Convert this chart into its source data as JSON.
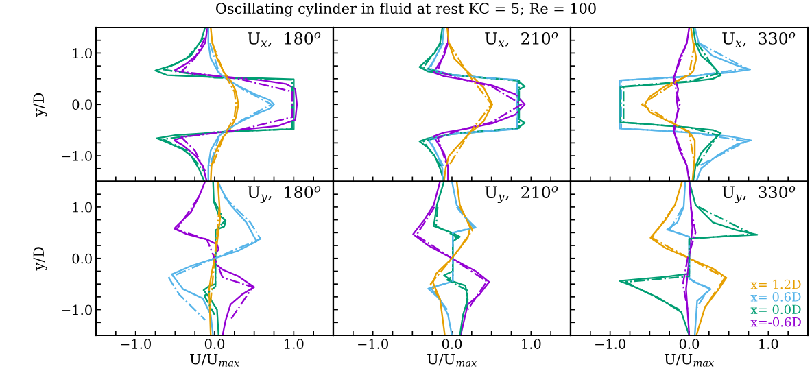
{
  "chart_data": [
    {
      "type": "line",
      "title": "Oscillating cylinder in fluid at rest KC = 5; Re = 100",
      "ylabel": "y/D",
      "annotations": [
        "U$_{x}$,  180$^{o}$"
      ],
      "tick_labels": "y",
      "xlim": [
        -1.5,
        1.5
      ],
      "ylim": [
        -1.5,
        1.5
      ],
      "xticks": [
        -1.25,
        -1,
        -0.75,
        -0.5,
        -0.25,
        0,
        0.25,
        0.5,
        0.75,
        1,
        1.25
      ],
      "yticks": [
        {
          "value": -1.25,
          "label": null
        },
        {
          "value": -1,
          "label": "−1.0"
        },
        {
          "value": -0.75,
          "label": null
        },
        {
          "value": -0.5,
          "label": null
        },
        {
          "value": -0.25,
          "label": null
        },
        {
          "value": 0,
          "label": "0.0"
        },
        {
          "value": 0.25,
          "label": null
        },
        {
          "value": 0.5,
          "label": null
        },
        {
          "value": 0.75,
          "label": null
        },
        {
          "value": 1,
          "label": "1.0"
        },
        {
          "value": 1.25,
          "label": null
        }
      ],
      "series": [
        {
          "color": "#009e73",
          "x": [
            -0.12,
            -0.17,
            -0.3,
            -0.5,
            -0.75,
            -0.6,
            0.0,
            0.6,
            1.0,
            1.0,
            1.0,
            0.5,
            0.0,
            -0.5,
            -0.73,
            -0.6,
            -0.4,
            -0.3,
            -0.2,
            -0.13
          ],
          "values": [
            1.5,
            1.25,
            0.95,
            0.78,
            0.66,
            0.57,
            0.53,
            0.51,
            0.49,
            0.0,
            -0.48,
            -0.51,
            -0.55,
            -0.6,
            -0.66,
            -0.74,
            -0.88,
            -1.0,
            -1.25,
            -1.5
          ]
        },
        {
          "color": "#9400d3",
          "x": [
            -0.09,
            -0.12,
            -0.2,
            -0.35,
            -0.51,
            -0.3,
            0.2,
            0.6,
            0.9,
            1.02,
            1.04,
            1.02,
            0.8,
            0.3,
            -0.1,
            -0.4,
            -0.51,
            -0.4,
            -0.24,
            -0.15,
            -0.1
          ],
          "values": [
            1.5,
            1.2,
            1.0,
            0.8,
            0.66,
            0.6,
            0.53,
            0.47,
            0.4,
            0.3,
            0.0,
            -0.3,
            -0.42,
            -0.5,
            -0.57,
            -0.63,
            -0.7,
            -0.8,
            -1.0,
            -1.2,
            -1.5
          ]
        },
        {
          "color": "#56b4e9",
          "x": [
            -0.08,
            -0.08,
            -0.05,
            0.05,
            0.17,
            0.35,
            0.51,
            0.7,
            0.75,
            0.7,
            0.51,
            0.35,
            0.2,
            0.05,
            -0.05,
            -0.08,
            -0.08
          ],
          "values": [
            1.5,
            1.2,
            0.9,
            0.62,
            0.47,
            0.32,
            0.2,
            0.08,
            0.0,
            -0.08,
            -0.2,
            -0.32,
            -0.45,
            -0.62,
            -0.9,
            -1.2,
            -1.5
          ]
        },
        {
          "color": "#e69f00",
          "x": [
            -0.05,
            -0.03,
            0.03,
            0.12,
            0.2,
            0.27,
            0.3,
            0.27,
            0.2,
            0.1,
            0.0,
            -0.04,
            -0.05
          ],
          "values": [
            1.5,
            1.2,
            0.9,
            0.62,
            0.47,
            0.25,
            0.0,
            -0.25,
            -0.47,
            -0.65,
            -0.95,
            -1.2,
            -1.5
          ]
        },
        {
          "color": "#009e73",
          "line_style": "dashdot",
          "x": [
            -0.14,
            -0.35,
            -0.65,
            0.0,
            0.98,
            0.98,
            0.0,
            -0.65,
            -0.35,
            -0.14
          ],
          "values": [
            1.3,
            0.9,
            0.68,
            0.52,
            0.48,
            -0.48,
            -0.54,
            -0.68,
            -0.9,
            -1.3
          ]
        },
        {
          "color": "#9400d3",
          "line_style": "dashdot",
          "x": [
            -0.12,
            -0.25,
            -0.42,
            0.3,
            0.98,
            0.98,
            0.3,
            -0.42,
            -0.25,
            -0.12
          ],
          "values": [
            1.3,
            0.9,
            0.64,
            0.5,
            0.25,
            -0.25,
            -0.5,
            -0.64,
            -0.9,
            -1.3
          ]
        },
        {
          "color": "#56b4e9",
          "line_style": "dashdot",
          "x": [
            -0.06,
            0.06,
            0.35,
            0.72,
            0.35,
            0.06,
            -0.06
          ],
          "values": [
            1.2,
            0.6,
            0.3,
            0.0,
            -0.3,
            -0.6,
            -1.2
          ]
        },
        {
          "color": "#e69f00",
          "line_style": "dashdot",
          "x": [
            -0.03,
            0.12,
            0.25,
            0.27,
            0.25,
            0.12,
            -0.03
          ],
          "values": [
            1.2,
            0.6,
            0.25,
            0.0,
            -0.25,
            -0.6,
            -1.2
          ]
        }
      ]
    },
    {
      "type": "line",
      "annotations": [
        "U$_{x}$,  210$^{o}$"
      ],
      "tick_labels": false,
      "xlim": [
        -1.5,
        1.5
      ],
      "ylim": [
        -1.5,
        1.5
      ],
      "xticks": [
        -1.25,
        -1,
        -0.75,
        -0.5,
        -0.25,
        0,
        0.25,
        0.5,
        0.75,
        1,
        1.25
      ],
      "yticks": [
        -1.25,
        -1,
        -0.75,
        -0.5,
        -0.25,
        0,
        0.25,
        0.5,
        0.75,
        1,
        1.25
      ],
      "series": [
        {
          "color": "#009e73",
          "x": [
            -0.12,
            -0.15,
            -0.22,
            -0.41,
            -0.3,
            0.0,
            0.5,
            0.83,
            0.92,
            0.84,
            0.84,
            0.92,
            0.83,
            0.5,
            0.0,
            -0.3,
            -0.41,
            -0.3,
            -0.22,
            -0.15,
            -0.1
          ],
          "values": [
            1.5,
            1.2,
            1.0,
            0.73,
            0.64,
            0.58,
            0.51,
            0.47,
            0.35,
            0.28,
            -0.28,
            -0.36,
            -0.47,
            -0.52,
            -0.58,
            -0.66,
            -0.72,
            -0.85,
            -1.0,
            -1.25,
            -1.5
          ]
        },
        {
          "color": "#56b4e9",
          "x": [
            -0.1,
            -0.12,
            -0.18,
            -0.25,
            -0.31,
            0.0,
            0.5,
            0.83,
            0.83,
            0.83,
            0.5,
            0.0,
            -0.31,
            -0.25,
            -0.18,
            -0.12,
            -0.12
          ],
          "values": [
            1.5,
            1.2,
            1.0,
            0.8,
            0.68,
            0.58,
            0.51,
            0.48,
            0.0,
            -0.48,
            -0.52,
            -0.58,
            -0.68,
            -0.8,
            -1.0,
            -1.25,
            -1.5
          ]
        },
        {
          "color": "#9400d3",
          "x": [
            -0.05,
            -0.05,
            -0.1,
            -0.2,
            -0.23,
            -0.1,
            0.2,
            0.51,
            0.8,
            0.92,
            0.8,
            0.51,
            0.2,
            -0.1,
            -0.23,
            -0.2,
            -0.1,
            -0.05,
            -0.05
          ],
          "values": [
            1.5,
            1.2,
            0.95,
            0.7,
            0.62,
            0.55,
            0.47,
            0.37,
            0.2,
            0.0,
            -0.2,
            -0.37,
            -0.47,
            -0.55,
            -0.62,
            -0.7,
            -0.95,
            -1.2,
            -1.5
          ]
        },
        {
          "color": "#e69f00",
          "x": [
            -0.06,
            -0.04,
            0.03,
            0.23,
            0.4,
            0.51,
            0.4,
            0.2,
            0.05,
            -0.04,
            -0.08,
            -0.1
          ],
          "values": [
            1.5,
            1.2,
            0.89,
            0.59,
            0.33,
            0.0,
            -0.33,
            -0.6,
            -0.85,
            -1.01,
            -1.25,
            -1.5
          ]
        },
        {
          "color": "#009e73",
          "line_style": "dashdot",
          "x": [
            -0.14,
            -0.36,
            0.0,
            0.85,
            0.85,
            0.0,
            -0.36,
            -0.14
          ],
          "values": [
            1.2,
            0.72,
            0.57,
            0.46,
            -0.46,
            -0.57,
            -0.72,
            -1.2
          ]
        },
        {
          "color": "#56b4e9",
          "line_style": "dashdot",
          "x": [
            -0.11,
            -0.28,
            0.0,
            0.82,
            0.82,
            0.0,
            -0.28,
            -0.11
          ],
          "values": [
            1.2,
            0.7,
            0.57,
            0.47,
            -0.47,
            -0.57,
            -0.7,
            -1.2
          ]
        },
        {
          "color": "#9400d3",
          "line_style": "dashdot",
          "x": [
            -0.06,
            -0.18,
            0.1,
            0.5,
            0.88,
            0.5,
            0.1,
            -0.18,
            -0.06
          ],
          "values": [
            1.2,
            0.65,
            0.5,
            0.35,
            0.0,
            -0.35,
            -0.5,
            -0.65,
            -1.2
          ]
        },
        {
          "color": "#e69f00",
          "line_style": "dashdot",
          "x": [
            -0.04,
            0.2,
            0.5,
            0.2,
            -0.04
          ],
          "values": [
            1.2,
            0.6,
            0.0,
            -0.6,
            -1.2
          ]
        }
      ]
    },
    {
      "type": "line",
      "annotations": [
        "U$_{x}$,  330$^{o}$"
      ],
      "tick_labels": false,
      "xlim": [
        -1.5,
        1.5
      ],
      "ylim": [
        -1.5,
        1.5
      ],
      "xticks": [
        -1.25,
        -1,
        -0.75,
        -0.5,
        -0.25,
        0,
        0.25,
        0.5,
        0.75,
        1,
        1.25
      ],
      "yticks": [
        -1.25,
        -1,
        -0.75,
        -0.5,
        -0.25,
        0,
        0.25,
        0.5,
        0.75,
        1,
        1.25
      ],
      "series": [
        {
          "color": "#56b4e9",
          "x": [
            0.07,
            0.12,
            0.29,
            0.6,
            0.77,
            0.5,
            0.0,
            -0.5,
            -0.88,
            -0.88,
            -0.88,
            -0.5,
            0.0,
            0.5,
            0.78,
            0.6,
            0.35,
            0.15,
            0.09
          ],
          "values": [
            1.5,
            1.2,
            0.95,
            0.76,
            0.68,
            0.62,
            0.55,
            0.5,
            0.47,
            0.0,
            -0.47,
            -0.5,
            -0.55,
            -0.62,
            -0.7,
            -0.78,
            -1.0,
            -1.25,
            -1.5
          ]
        },
        {
          "color": "#009e73",
          "x": [
            0.05,
            0.08,
            0.15,
            0.3,
            0.4,
            0.3,
            0.0,
            -0.5,
            -0.87,
            -0.87,
            -0.87,
            -0.5,
            0.0,
            0.3,
            0.4,
            0.3,
            0.15,
            0.08,
            0.05
          ],
          "values": [
            1.5,
            1.2,
            0.95,
            0.75,
            0.57,
            0.5,
            0.44,
            0.38,
            0.34,
            0.0,
            -0.35,
            -0.39,
            -0.45,
            -0.5,
            -0.56,
            -0.7,
            -0.95,
            -1.2,
            -1.5
          ]
        },
        {
          "color": "#9400d3",
          "x": [
            0.0,
            -0.03,
            -0.12,
            -0.19,
            -0.14,
            -0.16,
            -0.14,
            -0.17,
            -0.19,
            -0.12,
            -0.03,
            0.0
          ],
          "values": [
            1.5,
            1.2,
            0.9,
            0.54,
            0.3,
            0.1,
            -0.1,
            -0.3,
            -0.55,
            -0.9,
            -1.2,
            -1.5
          ]
        },
        {
          "color": "#e69f00",
          "x": [
            0.02,
            0.05,
            0.09,
            0.05,
            0.0,
            -0.3,
            -0.5,
            -0.56,
            -0.5,
            -0.3,
            0.0,
            0.07,
            0.07,
            0.04
          ],
          "values": [
            1.5,
            1.2,
            0.9,
            0.65,
            0.57,
            0.36,
            0.15,
            0.0,
            -0.15,
            -0.3,
            -0.53,
            -0.7,
            -1.0,
            -1.5
          ]
        },
        {
          "color": "#56b4e9",
          "line_style": "dashdot",
          "x": [
            0.12,
            0.72,
            0.0,
            -0.86,
            -0.86,
            0.0,
            0.72,
            0.12
          ],
          "values": [
            1.2,
            0.7,
            0.54,
            0.47,
            -0.47,
            -0.54,
            -0.72,
            -1.2
          ]
        },
        {
          "color": "#009e73",
          "line_style": "dashdot",
          "x": [
            0.1,
            0.36,
            0.0,
            -0.83,
            -0.83,
            0.0,
            0.36,
            0.1
          ],
          "values": [
            1.2,
            0.6,
            0.45,
            0.35,
            -0.35,
            -0.45,
            -0.6,
            -1.2
          ]
        },
        {
          "color": "#9400d3",
          "line_style": "dashdot",
          "x": [
            -0.03,
            -0.2,
            -0.12,
            -0.2,
            -0.03
          ],
          "values": [
            1.2,
            0.5,
            0.0,
            -0.5,
            -1.2
          ]
        },
        {
          "color": "#e69f00",
          "line_style": "dashdot",
          "x": [
            0.07,
            0.0,
            -0.6,
            0.0,
            0.07
          ],
          "values": [
            1.2,
            0.6,
            0.0,
            -0.55,
            -1.2
          ]
        }
      ]
    },
    {
      "type": "line",
      "xlabel": "U/U$_{max}$",
      "ylabel": "y/D",
      "annotations": [
        "U$_{y}$,  180$^{o}$"
      ],
      "xlim": [
        -1.5,
        1.5
      ],
      "ylim": [
        -1.5,
        1.5
      ],
      "xticks": [
        {
          "value": -1.25,
          "label": null
        },
        {
          "value": -1,
          "label": "−1.0"
        },
        {
          "value": -0.75,
          "label": null
        },
        {
          "value": -0.5,
          "label": null
        },
        {
          "value": -0.25,
          "label": null
        },
        {
          "value": 0,
          "label": "0.0"
        },
        {
          "value": 0.25,
          "label": null
        },
        {
          "value": 0.5,
          "label": null
        },
        {
          "value": 0.75,
          "label": null
        },
        {
          "value": 1,
          "label": "1.0"
        },
        {
          "value": 1.25,
          "label": null
        }
      ],
      "yticks": [
        {
          "value": -1.25,
          "label": null
        },
        {
          "value": -1,
          "label": "−1.0"
        },
        {
          "value": -0.75,
          "label": null
        },
        {
          "value": -0.5,
          "label": null
        },
        {
          "value": -0.25,
          "label": null
        },
        {
          "value": 0,
          "label": "0.0"
        },
        {
          "value": 0.25,
          "label": null
        },
        {
          "value": 0.5,
          "label": null
        },
        {
          "value": 0.75,
          "label": null
        },
        {
          "value": 1,
          "label": "1.0"
        },
        {
          "value": 1.25,
          "label": null
        }
      ],
      "series": [
        {
          "color": "#9400d3",
          "x": [
            -0.12,
            -0.2,
            -0.3,
            -0.51,
            -0.35,
            -0.1,
            0.03,
            0.05,
            -0.02,
            0.0,
            0.1,
            0.3,
            0.5,
            0.35,
            0.2,
            0.14,
            0.1
          ],
          "values": [
            1.5,
            1.2,
            0.9,
            0.58,
            0.47,
            0.37,
            0.27,
            0.18,
            0.0,
            -0.1,
            -0.22,
            -0.35,
            -0.56,
            -0.7,
            -0.9,
            -1.2,
            -1.5
          ]
        },
        {
          "color": "#56b4e9",
          "x": [
            0.04,
            0.1,
            0.2,
            0.4,
            0.53,
            0.3,
            0.0,
            -0.3,
            -0.54,
            -0.4,
            -0.15,
            -0.05,
            -0.02
          ],
          "values": [
            1.5,
            1.3,
            1.04,
            0.7,
            0.33,
            0.15,
            0.0,
            -0.15,
            -0.31,
            -0.6,
            -0.78,
            -1.1,
            -1.5
          ]
        },
        {
          "color": "#009e73",
          "x": [
            -0.02,
            -0.01,
            0.05,
            0.14,
            0.12,
            0.01,
            0.01,
            0.01,
            -0.08,
            -0.14,
            -0.05,
            0.03,
            0.05
          ],
          "values": [
            1.5,
            1.1,
            0.85,
            0.73,
            0.62,
            0.55,
            0.0,
            -0.5,
            -0.55,
            -0.62,
            -0.8,
            -1.0,
            -1.5
          ]
        },
        {
          "color": "#e69f00",
          "x": [
            0.04,
            0.07,
            0.03,
            0.0,
            -0.04,
            -0.07,
            -0.05
          ],
          "values": [
            1.5,
            0.8,
            0.3,
            0.0,
            -0.3,
            -0.6,
            -1.5
          ]
        },
        {
          "color": "#9400d3",
          "line_style": "dashdot",
          "x": [
            -0.2,
            -0.48,
            -0.1,
            0.0,
            0.1,
            0.48,
            0.2
          ],
          "values": [
            1.2,
            0.56,
            0.37,
            0.0,
            -0.37,
            -0.56,
            -1.2
          ]
        },
        {
          "color": "#56b4e9",
          "line_style": "dashdot",
          "x": [
            0.12,
            0.45,
            0.58,
            0.0,
            -0.58,
            -0.45,
            -0.12
          ],
          "values": [
            1.2,
            0.7,
            0.38,
            0.0,
            -0.38,
            -0.7,
            -1.2
          ]
        },
        {
          "color": "#009e73",
          "line_style": "dashdot",
          "x": [
            0.0,
            0.13,
            0.01,
            0.01,
            -0.13,
            0.0
          ],
          "values": [
            1.1,
            0.73,
            0.55,
            -0.55,
            -0.73,
            -1.1
          ]
        },
        {
          "color": "#e69f00",
          "line_style": "dashdot",
          "x": [
            0.06,
            0.0,
            -0.06
          ],
          "values": [
            1.0,
            0.0,
            -1.0
          ]
        }
      ]
    },
    {
      "type": "line",
      "xlabel": "U/U$_{max}$",
      "annotations": [
        "U$_{y}$,  210$^{o}$"
      ],
      "tick_labels": "x",
      "xlim": [
        -1.5,
        1.5
      ],
      "ylim": [
        -1.5,
        1.5
      ],
      "xticks": [
        {
          "value": -1.25,
          "label": null
        },
        {
          "value": -1,
          "label": "−1.0"
        },
        {
          "value": -0.75,
          "label": null
        },
        {
          "value": -0.5,
          "label": null
        },
        {
          "value": -0.25,
          "label": null
        },
        {
          "value": 0,
          "label": "0.0"
        },
        {
          "value": 0.25,
          "label": null
        },
        {
          "value": 0.5,
          "label": null
        },
        {
          "value": 0.75,
          "label": null
        },
        {
          "value": 1,
          "label": "1.0"
        },
        {
          "value": 1.25,
          "label": null
        }
      ],
      "yticks": [
        -1.25,
        -1,
        -0.75,
        -0.5,
        -0.25,
        0,
        0.25,
        0.5,
        0.75,
        1,
        1.25
      ],
      "series": [
        {
          "color": "#9400d3",
          "x": [
            -0.15,
            -0.23,
            -0.35,
            -0.49,
            -0.3,
            0.0,
            0.3,
            0.47,
            0.35,
            0.2,
            0.11
          ],
          "values": [
            1.5,
            1.04,
            0.75,
            0.47,
            0.25,
            0.0,
            -0.25,
            -0.46,
            -0.7,
            -0.9,
            -1.5
          ]
        },
        {
          "color": "#009e73",
          "x": [
            -0.1,
            -0.19,
            -0.23,
            0.0,
            0.1,
            0.01,
            0.01,
            -0.1,
            0.01,
            0.17,
            0.2,
            0.14,
            0.1
          ],
          "values": [
            1.5,
            1.04,
            0.63,
            0.5,
            0.42,
            0.33,
            -0.25,
            -0.33,
            -0.45,
            -0.53,
            -0.8,
            -1.1,
            -1.5
          ]
        },
        {
          "color": "#56b4e9",
          "x": [
            0.0,
            0.06,
            0.2,
            0.3,
            0.01,
            0.01,
            0.01,
            -0.3,
            -0.15,
            -0.05,
            0.0
          ],
          "values": [
            1.5,
            1.04,
            0.75,
            0.6,
            0.5,
            0.0,
            -0.45,
            -0.59,
            -0.8,
            -1.1,
            -1.5
          ]
        },
        {
          "color": "#e69f00",
          "x": [
            0.06,
            0.1,
            0.23,
            0.2,
            0.0,
            -0.2,
            -0.24,
            -0.15,
            -0.09
          ],
          "values": [
            1.5,
            1.04,
            0.6,
            0.4,
            0.0,
            -0.3,
            -0.47,
            -0.8,
            -1.5
          ]
        },
        {
          "color": "#9400d3",
          "line_style": "dashdot",
          "x": [
            -0.22,
            -0.45,
            0.0,
            0.44,
            0.2
          ],
          "values": [
            1.0,
            0.45,
            0.0,
            -0.45,
            -1.0
          ]
        },
        {
          "color": "#009e73",
          "line_style": "dashdot",
          "x": [
            -0.18,
            -0.2,
            0.06,
            0.01,
            0.01,
            -0.06,
            0.2,
            0.18
          ],
          "values": [
            1.0,
            0.63,
            0.42,
            0.35,
            -0.35,
            -0.42,
            -0.63,
            -1.0
          ]
        },
        {
          "color": "#56b4e9",
          "line_style": "dashdot",
          "x": [
            0.06,
            0.27,
            0.01,
            0.01,
            -0.27,
            -0.06
          ],
          "values": [
            1.0,
            0.6,
            0.5,
            -0.45,
            -0.57,
            -1.0
          ]
        },
        {
          "color": "#e69f00",
          "line_style": "dashdot",
          "x": [
            0.1,
            0.26,
            0.0,
            -0.27,
            -0.15
          ],
          "values": [
            1.0,
            0.55,
            0.0,
            -0.5,
            -0.8
          ]
        }
      ]
    },
    {
      "type": "line",
      "xlabel": "U/U$_{max}$",
      "annotations": [
        "U$_{y}$,  330$^{o}$"
      ],
      "tick_labels": "x",
      "legend": "bottom right",
      "xlim": [
        -1.5,
        1.5
      ],
      "ylim": [
        -1.5,
        1.5
      ],
      "xticks": [
        {
          "value": -1.25,
          "label": null
        },
        {
          "value": -1,
          "label": "−1.0"
        },
        {
          "value": -0.75,
          "label": null
        },
        {
          "value": -0.5,
          "label": null
        },
        {
          "value": -0.25,
          "label": null
        },
        {
          "value": 0,
          "label": "0.0"
        },
        {
          "value": 0.25,
          "label": null
        },
        {
          "value": 0.5,
          "label": null
        },
        {
          "value": 0.75,
          "label": null
        },
        {
          "value": 1,
          "label": "1.0"
        },
        {
          "value": 1.25,
          "label": null
        }
      ],
      "yticks": [
        -1.25,
        -1,
        -0.75,
        -0.5,
        -0.25,
        0,
        0.25,
        0.5,
        0.75,
        1,
        1.25
      ],
      "series": [
        {
          "name": "x= 1.2D",
          "color": "#e69f00",
          "x": [
            -0.09,
            -0.18,
            -0.3,
            -0.49,
            -0.3,
            0.0,
            0.3,
            0.47,
            0.35,
            0.2,
            0.09
          ],
          "values": [
            1.5,
            1.04,
            0.75,
            0.4,
            0.2,
            0.0,
            -0.2,
            -0.38,
            -0.65,
            -0.95,
            -1.5
          ]
        },
        {
          "name": "x= 0.6D",
          "color": "#56b4e9",
          "x": [
            -0.05,
            -0.07,
            -0.15,
            -0.28,
            -0.05,
            0.0,
            0.0,
            0.05,
            0.27,
            0.1,
            0.07
          ],
          "values": [
            1.5,
            1.0,
            0.7,
            0.56,
            0.45,
            0.42,
            -0.38,
            -0.45,
            -0.6,
            -0.83,
            -1.5
          ]
        },
        {
          "name": "x= 0.0D",
          "color": "#009e73",
          "x": [
            0.0,
            0.08,
            0.3,
            0.6,
            0.86,
            0.1,
            0.0,
            0.0,
            -0.3,
            -0.88,
            -0.7,
            -0.4,
            -0.1,
            0.0
          ],
          "values": [
            1.5,
            1.04,
            0.7,
            0.55,
            0.46,
            0.4,
            0.38,
            -0.3,
            -0.36,
            -0.44,
            -0.55,
            -0.76,
            -1.05,
            -1.5
          ]
        },
        {
          "name": "x=-0.6D",
          "color": "#9400d3",
          "x": [
            0.0,
            0.04,
            0.0,
            -0.04,
            0.0
          ],
          "values": [
            1.5,
            0.6,
            0.0,
            -0.6,
            -1.5
          ]
        },
        {
          "color": "#e69f00",
          "line_style": "dashdot",
          "x": [
            -0.2,
            -0.47,
            0.0,
            0.45,
            0.2
          ],
          "values": [
            1.0,
            0.4,
            0.0,
            -0.38,
            -0.95
          ]
        },
        {
          "color": "#56b4e9",
          "line_style": "dashdot",
          "x": [
            -0.08,
            -0.25,
            0.0,
            0.0,
            0.25,
            0.08
          ],
          "values": [
            1.0,
            0.55,
            0.42,
            -0.4,
            -0.58,
            -1.0
          ]
        },
        {
          "color": "#009e73",
          "line_style": "dashdot",
          "x": [
            0.12,
            0.8,
            0.0,
            0.0,
            -0.8,
            -0.12
          ],
          "values": [
            1.0,
            0.47,
            0.38,
            -0.35,
            -0.46,
            -1.0
          ]
        },
        {
          "color": "#9400d3",
          "line_style": "dashdot",
          "x": [
            0.02,
            0.08,
            -0.02,
            -0.08,
            -0.02
          ],
          "values": [
            1.0,
            0.5,
            0.0,
            -0.5,
            -1.0
          ]
        }
      ]
    }
  ]
}
